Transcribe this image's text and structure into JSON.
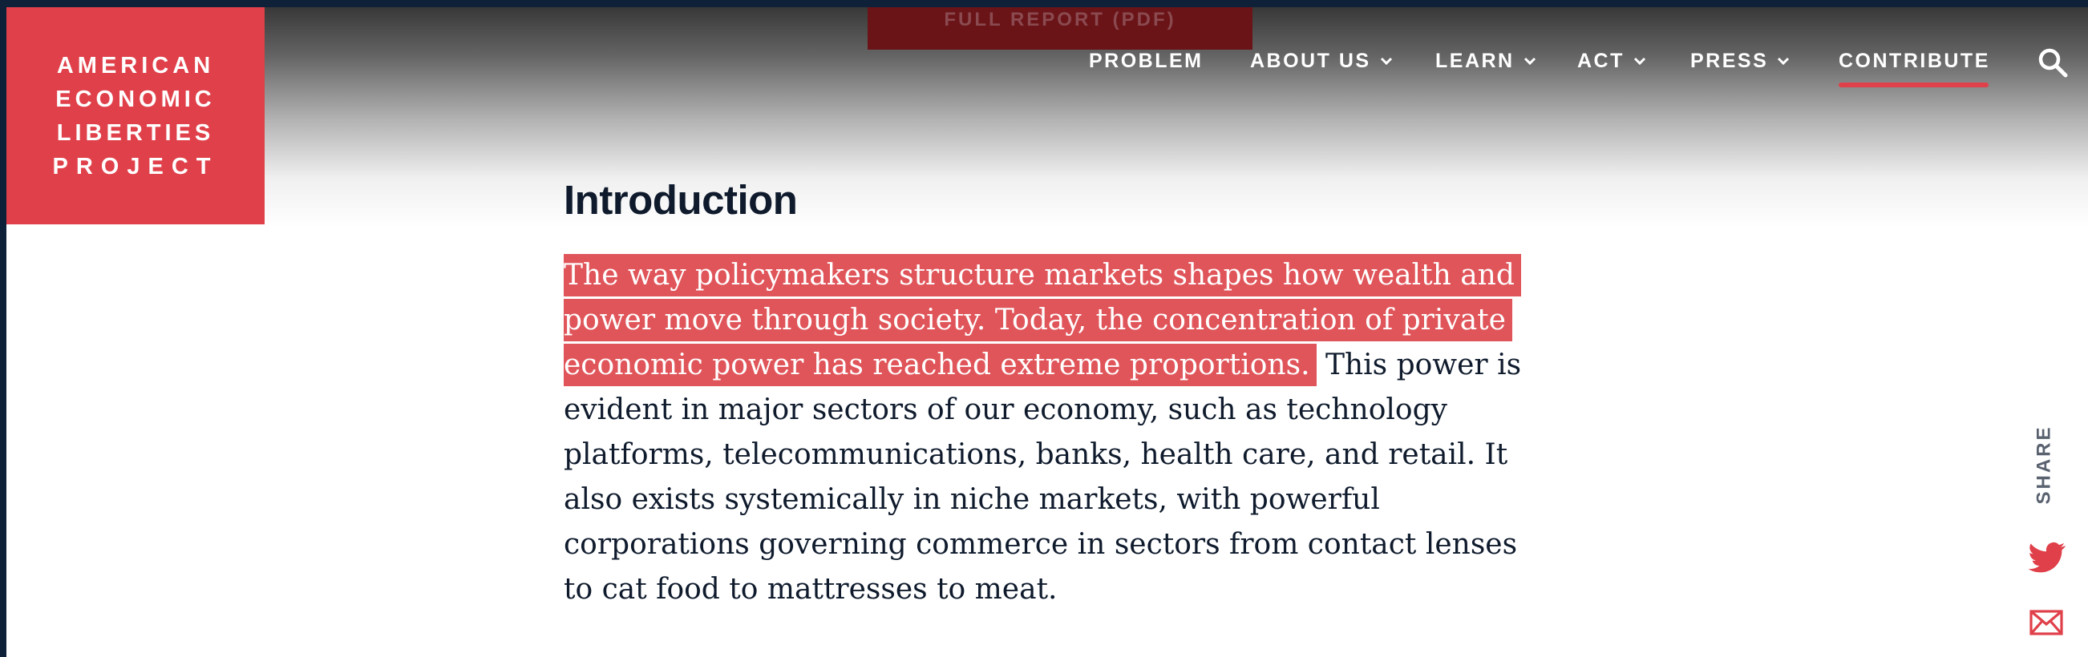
{
  "header": {
    "pdf_button_label": "FULL REPORT (PDF)",
    "logo_lines": [
      "AMERICAN",
      "ECONOMIC",
      "LIBERTIES",
      "PROJECT"
    ],
    "nav": [
      {
        "label": "PROBLEM",
        "has_dropdown": false
      },
      {
        "label": "ABOUT US",
        "has_dropdown": true
      },
      {
        "label": "LEARN",
        "has_dropdown": true
      },
      {
        "label": "ACT",
        "has_dropdown": true
      },
      {
        "label": "PRESS",
        "has_dropdown": true
      },
      {
        "label": "CONTRIBUTE",
        "has_dropdown": false,
        "active": true
      }
    ],
    "search_icon": "search-icon"
  },
  "article": {
    "heading": "Introduction",
    "highlighted_text": "The way policymakers structure markets shapes how wealth and power move through society. Today, the concentration of private economic power has reached extreme proportions.",
    "body_text": " This power is evident in major sectors of our economy, such as technology platforms, telecommunications, banks, health care, and retail. It also exists systemically in niche markets, with powerful corporations governing commerce in sectors from contact lenses to cat food to mattresses to meat."
  },
  "share": {
    "label": "SHARE",
    "icons": [
      "twitter-icon",
      "mail-icon"
    ]
  },
  "colors": {
    "brand_red": "#e0404a",
    "highlight": "#e0555a",
    "text_dark": "#0f1b2d",
    "frame": "#0f2138"
  }
}
